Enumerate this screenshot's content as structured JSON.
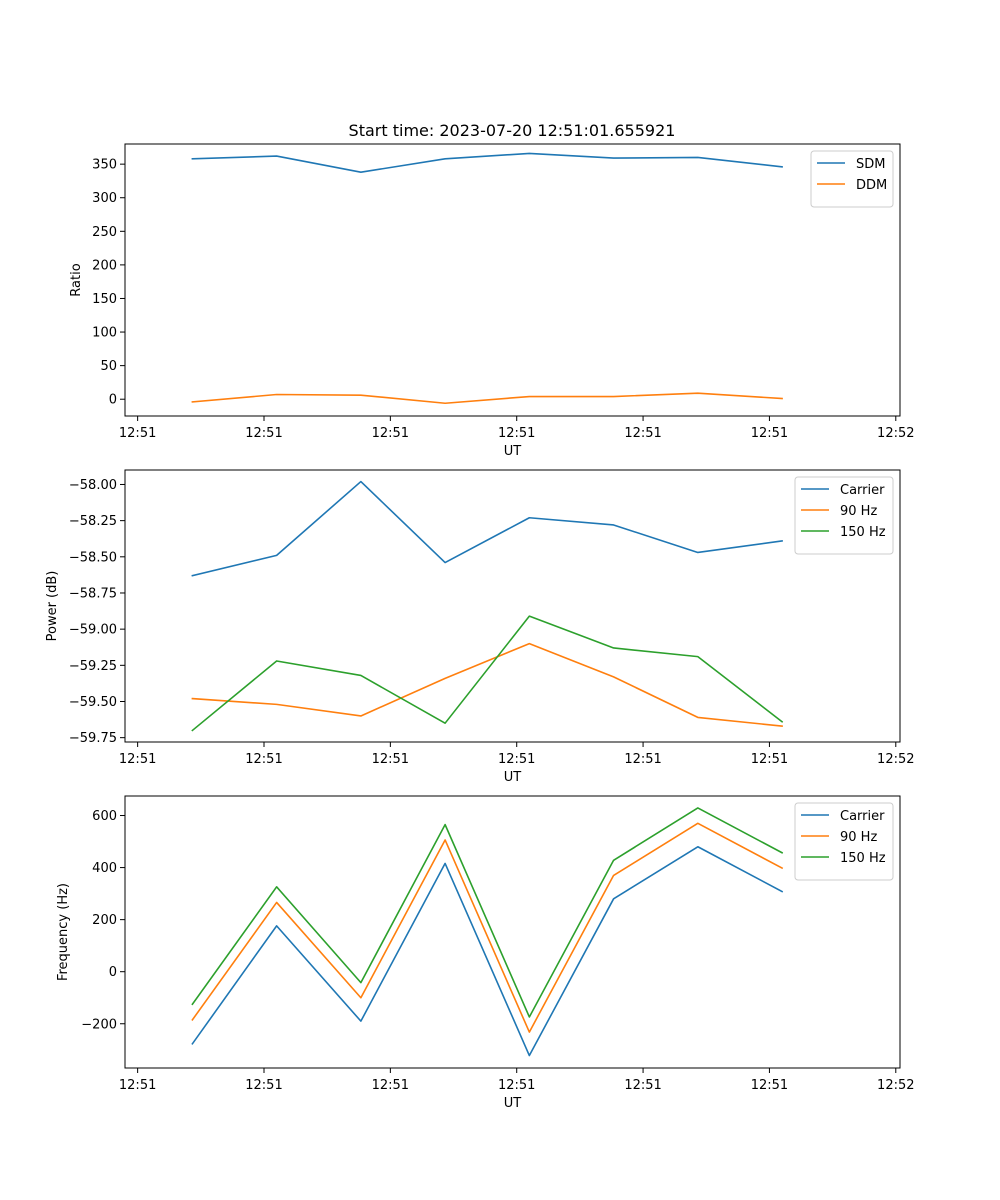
{
  "figure_title": "Start time: 2023-07-20 12:51:01.655921",
  "chart_data": [
    {
      "type": "line",
      "title": "Start time: 2023-07-20 12:51:01.655921",
      "xlabel": "UT",
      "ylabel": "Ratio",
      "x": [
        1,
        2,
        3,
        4,
        5,
        6,
        7,
        8
      ],
      "xlim": [
        0.2,
        9.4
      ],
      "xticks": [
        0.35,
        1.85,
        3.35,
        4.85,
        6.35,
        7.85,
        9.35
      ],
      "xtick_labels": [
        "12:51",
        "12:51",
        "12:51",
        "12:51",
        "12:51",
        "12:51",
        "12:52"
      ],
      "ylim": [
        -25,
        380
      ],
      "yticks": [
        0,
        50,
        100,
        150,
        200,
        250,
        300,
        350
      ],
      "ytick_labels": [
        "0",
        "50",
        "100",
        "150",
        "200",
        "250",
        "300",
        "350"
      ],
      "legend_position": "top-right",
      "series": [
        {
          "name": "SDM",
          "color": "#1f77b4",
          "values": [
            358,
            362,
            338,
            358,
            366,
            359,
            360,
            346
          ]
        },
        {
          "name": "DDM",
          "color": "#ff7f0e",
          "values": [
            -4,
            7,
            6,
            -6,
            4,
            4,
            9,
            1
          ]
        }
      ]
    },
    {
      "type": "line",
      "title": "",
      "xlabel": "UT",
      "ylabel": "Power (dB)",
      "x": [
        1,
        2,
        3,
        4,
        5,
        6,
        7,
        8
      ],
      "xlim": [
        0.2,
        9.4
      ],
      "xticks": [
        0.35,
        1.85,
        3.35,
        4.85,
        6.35,
        7.85,
        9.35
      ],
      "xtick_labels": [
        "12:51",
        "12:51",
        "12:51",
        "12:51",
        "12:51",
        "12:51",
        "12:52"
      ],
      "ylim": [
        -59.78,
        -57.9
      ],
      "yticks": [
        -59.75,
        -59.5,
        -59.25,
        -59.0,
        -58.75,
        -58.5,
        -58.25,
        -58.0
      ],
      "ytick_labels": [
        "−59.75",
        "−59.50",
        "−59.25",
        "−59.00",
        "−58.75",
        "−58.50",
        "−58.25",
        "−58.00"
      ],
      "legend_position": "top-right",
      "series": [
        {
          "name": "Carrier",
          "color": "#1f77b4",
          "values": [
            -58.63,
            -58.49,
            -57.98,
            -58.54,
            -58.23,
            -58.28,
            -58.47,
            -58.39
          ]
        },
        {
          "name": "90 Hz",
          "color": "#ff7f0e",
          "values": [
            -59.48,
            -59.52,
            -59.6,
            -59.34,
            -59.1,
            -59.33,
            -59.61,
            -59.67
          ]
        },
        {
          "name": "150 Hz",
          "color": "#2ca02c",
          "values": [
            -59.7,
            -59.22,
            -59.32,
            -59.65,
            -58.91,
            -59.13,
            -59.19,
            -59.64
          ]
        }
      ]
    },
    {
      "type": "line",
      "title": "",
      "xlabel": "UT",
      "ylabel": "Frequency (Hz)",
      "x": [
        1,
        2,
        3,
        4,
        5,
        6,
        7,
        8
      ],
      "xlim": [
        0.2,
        9.4
      ],
      "xticks": [
        0.35,
        1.85,
        3.35,
        4.85,
        6.35,
        7.85,
        9.35
      ],
      "xtick_labels": [
        "12:51",
        "12:51",
        "12:51",
        "12:51",
        "12:51",
        "12:51",
        "12:52"
      ],
      "ylim": [
        -370,
        675
      ],
      "yticks": [
        -200,
        0,
        200,
        400,
        600
      ],
      "ytick_labels": [
        "−200",
        "0",
        "200",
        "400",
        "600"
      ],
      "legend_position": "top-right",
      "series": [
        {
          "name": "Carrier",
          "color": "#1f77b4",
          "values": [
            -277,
            176,
            -190,
            416,
            -322,
            280,
            480,
            308
          ]
        },
        {
          "name": "90 Hz",
          "color": "#ff7f0e",
          "values": [
            -185,
            266,
            -100,
            506,
            -232,
            370,
            570,
            398
          ]
        },
        {
          "name": "150 Hz",
          "color": "#2ca02c",
          "values": [
            -125,
            326,
            -42,
            565,
            -174,
            428,
            629,
            457
          ]
        }
      ]
    }
  ]
}
